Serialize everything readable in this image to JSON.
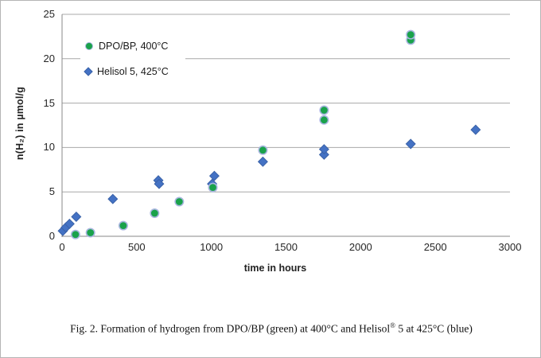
{
  "figure": {
    "caption": {
      "prefix": "Fig. 2. Formation of hydrogen from DPO/BP (green) at 400°C and Helisol",
      "sup": "®",
      "suffix": " 5 at 425°C (blue)"
    }
  },
  "chart_data": {
    "type": "scatter",
    "title": "",
    "xlabel": "time in hours",
    "ylabel": "n(H₂) in µmol/g",
    "xlim": [
      0,
      3000
    ],
    "ylim": [
      0,
      25
    ],
    "x_ticks": [
      0,
      500,
      1000,
      1500,
      2000,
      2500,
      3000
    ],
    "y_ticks": [
      0,
      5,
      10,
      15,
      20,
      25
    ],
    "grid": "horizontal",
    "grid_color": "#a8a8a8",
    "axis_color": "#8a8a8a",
    "legend_position": "top-left-inside",
    "series": [
      {
        "name": "DPO/BP, 400°C",
        "marker": "circle",
        "color": "#1aa24b",
        "border_color": "#a9b6e0",
        "points": [
          [
            90,
            0.2
          ],
          [
            190,
            0.4
          ],
          [
            410,
            1.2
          ],
          [
            620,
            2.6
          ],
          [
            785,
            3.9
          ],
          [
            1010,
            5.5
          ],
          [
            1345,
            9.7
          ],
          [
            1755,
            13.1
          ],
          [
            1755,
            14.2
          ],
          [
            2335,
            22.1
          ],
          [
            2335,
            22.7
          ]
        ]
      },
      {
        "name": "Helisol 5, 425°C",
        "marker": "diamond",
        "color": "#4472c4",
        "border_color": "#3a62a8",
        "points": [
          [
            5,
            0.6
          ],
          [
            25,
            1.0
          ],
          [
            50,
            1.4
          ],
          [
            95,
            2.2
          ],
          [
            340,
            4.2
          ],
          [
            645,
            6.3
          ],
          [
            650,
            5.9
          ],
          [
            1005,
            5.9
          ],
          [
            1020,
            6.8
          ],
          [
            1345,
            8.4
          ],
          [
            1755,
            9.2
          ],
          [
            1755,
            9.8
          ],
          [
            2335,
            10.4
          ],
          [
            2770,
            12.0
          ]
        ]
      }
    ]
  }
}
